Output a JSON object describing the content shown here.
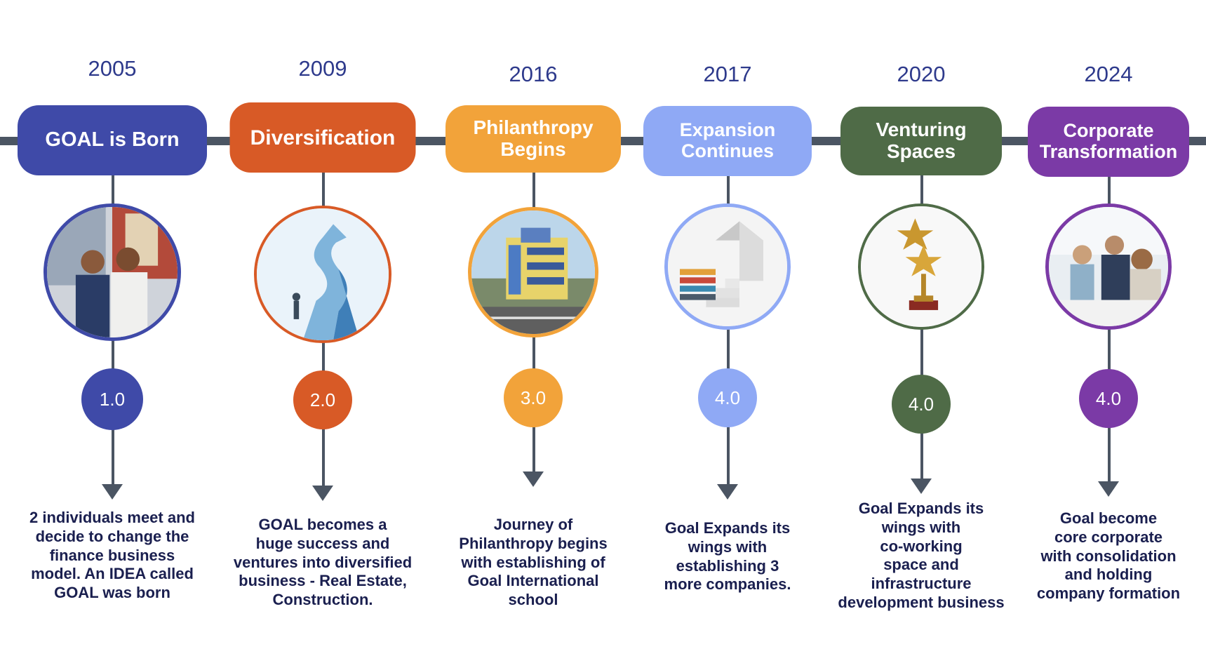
{
  "milestones": [
    {
      "year": "2005",
      "title": "GOAL is Born",
      "version": "1.0",
      "color": "#3f4aa8",
      "description": "2 individuals meet and\ndecide to change the\nfinance business\nmodel. An IDEA called\nGOAL was born"
    },
    {
      "year": "2009",
      "title": "Diversification",
      "version": "2.0",
      "color": "#d85a26",
      "description": "GOAL becomes a\nhuge success and\nventures into diversified\nbusiness - Real Estate,\nConstruction."
    },
    {
      "year": "2016",
      "title": "Philanthropy\nBegins",
      "version": "3.0",
      "color": "#f2a33a",
      "description": "Journey of\nPhilanthropy begins\nwith establishing of\nGoal International\nschool"
    },
    {
      "year": "2017",
      "title": "Expansion\nContinues",
      "version": "4.0",
      "color": "#8fa9f5",
      "description": "Goal Expands its\nwings with\nestablishing 3\nmore companies."
    },
    {
      "year": "2020",
      "title": "Venturing\nSpaces",
      "version": "4.0",
      "color": "#4f6b47",
      "description": "Goal Expands its\nwings with\nco-working\nspace and\ninfrastructure\ndevelopment business"
    },
    {
      "year": "2024",
      "title": "Corporate\nTransformation",
      "version": "4.0",
      "color": "#7b3aa6",
      "description": "Goal become\ncore corporate\nwith consolidation\nand holding\ncompany formation"
    }
  ]
}
